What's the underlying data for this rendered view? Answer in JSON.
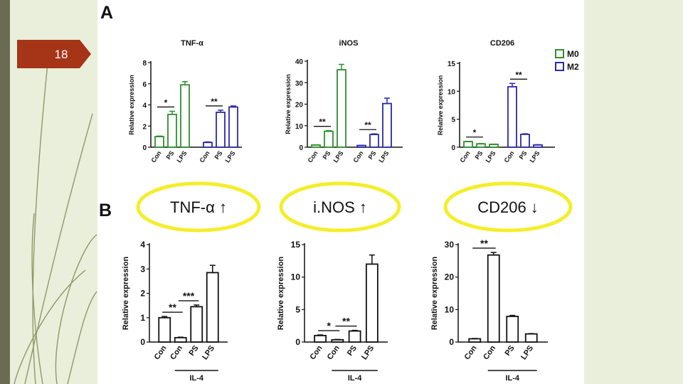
{
  "slide": {
    "number": "18",
    "colors": {
      "background": "#e9efdb",
      "left_stripe": "#6b6b52",
      "number_tab": "#a63417",
      "content_panel": "#ffffff",
      "m0": "#2d8f2d",
      "m2": "#2929a8",
      "bar_b": "#111111",
      "highlight_ring": "#f4ee2b"
    }
  },
  "panels": {
    "a_label": "A",
    "b_label": "B"
  },
  "legend": [
    {
      "name": "M0",
      "color": "#2d8f2d"
    },
    {
      "name": "M2",
      "color": "#2929a8"
    }
  ],
  "callouts": [
    {
      "text": "TNF-α ↑"
    },
    {
      "text": "i.NOS ↑"
    },
    {
      "text": "CD206 ↓"
    }
  ],
  "chart_data": [
    {
      "type": "bar",
      "panel": "A",
      "title": "TNF-α",
      "ylabel": "Relative expression",
      "ylim": [
        0,
        8
      ],
      "yticks": [
        0,
        2,
        4,
        6,
        8
      ],
      "categories": [
        "Con",
        "PS",
        "LPS",
        "Con",
        "PS",
        "LPS"
      ],
      "groups": [
        "M0",
        "M0",
        "M0",
        "M2",
        "M2",
        "M2"
      ],
      "values": [
        1.0,
        3.1,
        5.9,
        0.45,
        3.3,
        3.8
      ],
      "errors": [
        0.05,
        0.3,
        0.3,
        0.05,
        0.2,
        0.1
      ],
      "sig": [
        {
          "from": 0,
          "to": 1,
          "label": "*"
        },
        {
          "from": 3,
          "to": 4,
          "label": "**"
        }
      ]
    },
    {
      "type": "bar",
      "panel": "A",
      "title": "iNOS",
      "ylabel": "Relative expression",
      "ylim": [
        0,
        40
      ],
      "yticks": [
        0,
        10,
        20,
        30,
        40
      ],
      "categories": [
        "Con",
        "PS",
        "LPS",
        "Con",
        "PS",
        "LPS"
      ],
      "groups": [
        "M0",
        "M0",
        "M0",
        "M2",
        "M2",
        "M2"
      ],
      "values": [
        1.0,
        7.4,
        36.0,
        0.8,
        5.9,
        20.3
      ],
      "errors": [
        0.1,
        0.3,
        2.5,
        0.1,
        0.3,
        2.5
      ],
      "sig": [
        {
          "from": 0,
          "to": 1,
          "label": "**"
        },
        {
          "from": 3,
          "to": 4,
          "label": "**"
        }
      ]
    },
    {
      "type": "bar",
      "panel": "A",
      "title": "CD206",
      "ylabel": "Relative expression",
      "ylim": [
        0,
        15
      ],
      "yticks": [
        0,
        5,
        10,
        15
      ],
      "categories": [
        "Con",
        "PS",
        "LPS",
        "Con",
        "PS",
        "LPS"
      ],
      "groups": [
        "M0",
        "M0",
        "M0",
        "M2",
        "M2",
        "M2"
      ],
      "values": [
        1.0,
        0.6,
        0.5,
        10.8,
        2.3,
        0.4
      ],
      "errors": [
        0.05,
        0.05,
        0.05,
        0.6,
        0.1,
        0.05
      ],
      "sig": [
        {
          "from": 0,
          "to": 1,
          "label": "*"
        },
        {
          "from": 3,
          "to": 4,
          "label": "**"
        }
      ],
      "legend": "top-right"
    },
    {
      "type": "bar",
      "panel": "B",
      "ylabel": "Relative expression",
      "ylim": [
        0,
        4
      ],
      "yticks": [
        0,
        1,
        2,
        3,
        4
      ],
      "categories": [
        "Con",
        "Con",
        "PS",
        "LPS"
      ],
      "bracket_label": "IL-4",
      "bracket_from": 1,
      "bracket_to": 3,
      "values": [
        1.0,
        0.18,
        1.45,
        2.85
      ],
      "errors": [
        0.05,
        0.02,
        0.07,
        0.3
      ],
      "sig": [
        {
          "from": 0,
          "to": 1,
          "label": "**"
        },
        {
          "from": 1,
          "to": 2,
          "label": "***"
        }
      ]
    },
    {
      "type": "bar",
      "panel": "B",
      "ylabel": "Relative expression",
      "ylim": [
        0,
        15
      ],
      "yticks": [
        0,
        5,
        10,
        15
      ],
      "categories": [
        "Con",
        "Con",
        "PS",
        "LPS"
      ],
      "bracket_label": "IL-4",
      "bracket_from": 1,
      "bracket_to": 3,
      "values": [
        1.0,
        0.35,
        1.7,
        12.0
      ],
      "errors": [
        0.1,
        0.05,
        0.1,
        1.4
      ],
      "sig": [
        {
          "from": 0,
          "to": 1,
          "label": "*"
        },
        {
          "from": 1,
          "to": 2,
          "label": "**"
        }
      ]
    },
    {
      "type": "bar",
      "panel": "B",
      "ylabel": "Relative expression",
      "ylim": [
        0,
        30
      ],
      "yticks": [
        0,
        10,
        20,
        30
      ],
      "categories": [
        "Con",
        "Con",
        "PS",
        "LPS"
      ],
      "bracket_label": "IL-4",
      "bracket_from": 1,
      "bracket_to": 3,
      "values": [
        1.0,
        26.8,
        7.9,
        2.5
      ],
      "errors": [
        0.1,
        0.8,
        0.3,
        0.1
      ],
      "sig": [
        {
          "from": 0,
          "to": 1,
          "label": "**"
        }
      ]
    }
  ]
}
